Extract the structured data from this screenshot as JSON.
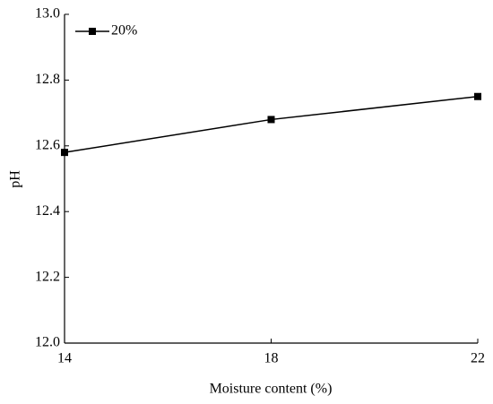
{
  "chart_data": {
    "type": "line",
    "x_label": "Moisture content (%)",
    "y_label": "pH",
    "x": [
      14,
      18,
      22
    ],
    "series": [
      {
        "name": "20%",
        "color": "#000000",
        "values": [
          12.58,
          12.68,
          12.75
        ]
      }
    ],
    "xlim": [
      14,
      22
    ],
    "xticks": [
      14,
      18,
      22
    ],
    "ylim": [
      12.0,
      13.0
    ],
    "yticks": [
      {
        "value": 12.0,
        "label": "12.0"
      },
      12.2,
      12.4,
      12.6,
      12.8,
      {
        "value": 13.0,
        "label": "13.0"
      }
    ],
    "legend": "top-left"
  }
}
